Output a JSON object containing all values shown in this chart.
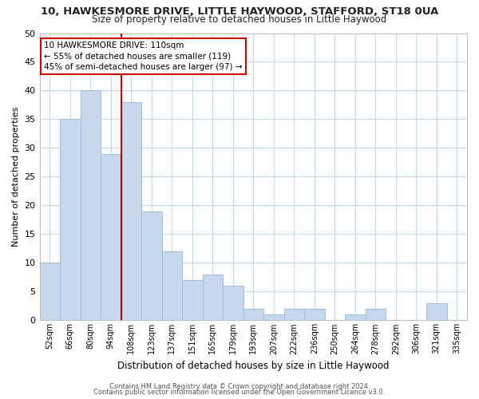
{
  "title": "10, HAWKESMORE DRIVE, LITTLE HAYWOOD, STAFFORD, ST18 0UA",
  "subtitle": "Size of property relative to detached houses in Little Haywood",
  "xlabel": "Distribution of detached houses by size in Little Haywood",
  "ylabel": "Number of detached properties",
  "categories": [
    "52sqm",
    "66sqm",
    "80sqm",
    "94sqm",
    "108sqm",
    "123sqm",
    "137sqm",
    "151sqm",
    "165sqm",
    "179sqm",
    "193sqm",
    "207sqm",
    "222sqm",
    "236sqm",
    "250sqm",
    "264sqm",
    "278sqm",
    "292sqm",
    "306sqm",
    "321sqm",
    "335sqm"
  ],
  "values": [
    10,
    35,
    40,
    29,
    38,
    19,
    12,
    7,
    8,
    6,
    2,
    1,
    2,
    2,
    0,
    1,
    2,
    0,
    0,
    3,
    0
  ],
  "bar_color": "#c5d8ed",
  "bar_edge_color": "#a0bdd8",
  "marker_line_color": "#cc0000",
  "marker_bar_index": 4,
  "annotation_title": "10 HAWKESMORE DRIVE: 110sqm",
  "annotation_line1": "← 55% of detached houses are smaller (119)",
  "annotation_line2": "45% of semi-detached houses are larger (97) →",
  "annotation_box_color": "#ffffff",
  "annotation_box_edge_color": "#cc0000",
  "ylim": [
    0,
    50
  ],
  "yticks": [
    0,
    5,
    10,
    15,
    20,
    25,
    30,
    35,
    40,
    45,
    50
  ],
  "footer1": "Contains HM Land Registry data © Crown copyright and database right 2024.",
  "footer2": "Contains public sector information licensed under the Open Government Licence v3.0.",
  "background_color": "#ffffff",
  "grid_color": "#c8d8ea",
  "title_fontsize": 9.5,
  "subtitle_fontsize": 8.5,
  "ylabel_fontsize": 8.0,
  "xlabel_fontsize": 8.5,
  "ytick_fontsize": 8.0,
  "xtick_fontsize": 7.0,
  "footer_fontsize": 6.0
}
